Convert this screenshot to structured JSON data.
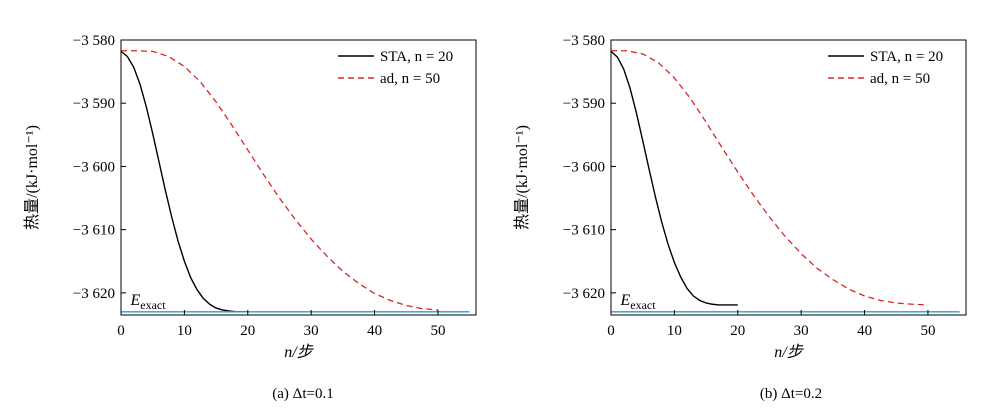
{
  "chart_data": [
    {
      "type": "line",
      "caption": "(a) Δt=0.1",
      "xlabel": "n/步",
      "ylabel": "热量/(kJ·mol⁻¹)",
      "xlim": [
        0,
        56
      ],
      "ylim": [
        -3623.5,
        -3580
      ],
      "xticks": [
        0,
        10,
        20,
        30,
        40,
        50
      ],
      "yticks": [
        -3580,
        -3590,
        -3600,
        -3610,
        -3620
      ],
      "ytick_labels": [
        "−3 580",
        "−3 590",
        "−3 600",
        "−3 610",
        "−3 620"
      ],
      "legend_position": "top-right",
      "series": [
        {
          "name": "STA, n = 20",
          "color": "#000000",
          "style": "solid",
          "x": [
            0,
            1,
            2,
            3,
            4,
            5,
            6,
            7,
            8,
            9,
            10,
            11,
            12,
            13,
            14,
            15,
            16,
            17,
            18,
            19,
            20
          ],
          "y": [
            -3581.8,
            -3582.6,
            -3584.3,
            -3587.0,
            -3590.6,
            -3594.8,
            -3599.3,
            -3603.8,
            -3608.0,
            -3611.8,
            -3615.0,
            -3617.6,
            -3619.5,
            -3620.9,
            -3621.8,
            -3622.4,
            -3622.7,
            -3622.85,
            -3622.95,
            -3623.0,
            -3623.0
          ]
        },
        {
          "name": "ad, n = 50",
          "color": "#d62728",
          "style": "dashed",
          "x": [
            0,
            2.5,
            5,
            7.5,
            10,
            12.5,
            15,
            17.5,
            20,
            22.5,
            25,
            27.5,
            30,
            32.5,
            35,
            37.5,
            40,
            42.5,
            45,
            47.5,
            50
          ],
          "y": [
            -3581.7,
            -3581.7,
            -3581.8,
            -3582.6,
            -3584.2,
            -3586.6,
            -3589.8,
            -3593.5,
            -3597.4,
            -3601.3,
            -3605.0,
            -3608.4,
            -3611.5,
            -3614.2,
            -3616.6,
            -3618.5,
            -3620.1,
            -3621.2,
            -3622.0,
            -3622.5,
            -3622.7
          ]
        },
        {
          "name": "E_exact",
          "color": "#1f9fe0",
          "style": "solid",
          "x": [
            0,
            55
          ],
          "y": [
            -3623.0,
            -3623.0
          ]
        }
      ],
      "annotations": [
        {
          "text": "E",
          "subscript": "exact",
          "x": 1.5,
          "y": -3621.9
        }
      ]
    },
    {
      "type": "line",
      "caption": "(b) Δt=0.2",
      "xlabel": "n/步",
      "ylabel": "热量/(kJ·mol⁻¹)",
      "xlim": [
        0,
        56
      ],
      "ylim": [
        -3623.5,
        -3580
      ],
      "xticks": [
        0,
        10,
        20,
        30,
        40,
        50
      ],
      "yticks": [
        -3580,
        -3590,
        -3600,
        -3610,
        -3620
      ],
      "ytick_labels": [
        "−3 580",
        "−3 590",
        "−3 600",
        "−3 610",
        "−3 620"
      ],
      "legend_position": "top-right",
      "series": [
        {
          "name": "STA, n = 20",
          "color": "#000000",
          "style": "solid",
          "x": [
            0,
            1,
            2,
            3,
            4,
            5,
            6,
            7,
            8,
            9,
            10,
            11,
            12,
            13,
            14,
            15,
            16,
            17,
            18,
            19,
            20
          ],
          "y": [
            -3581.8,
            -3582.7,
            -3584.6,
            -3587.6,
            -3591.5,
            -3595.9,
            -3600.4,
            -3604.8,
            -3608.8,
            -3612.3,
            -3615.2,
            -3617.5,
            -3619.3,
            -3620.5,
            -3621.2,
            -3621.6,
            -3621.8,
            -3621.9,
            -3621.9,
            -3621.9,
            -3621.9
          ]
        },
        {
          "name": "ad, n = 50",
          "color": "#d62728",
          "style": "dashed",
          "x": [
            0,
            2.5,
            5,
            7.5,
            10,
            12.5,
            15,
            17.5,
            20,
            22.5,
            25,
            27.5,
            30,
            32.5,
            35,
            37.5,
            40,
            42.5,
            45,
            47.5,
            50
          ],
          "y": [
            -3581.7,
            -3581.7,
            -3582.2,
            -3583.6,
            -3586.0,
            -3589.2,
            -3593.0,
            -3597.0,
            -3600.9,
            -3604.6,
            -3608.0,
            -3611.1,
            -3613.8,
            -3616.1,
            -3617.9,
            -3619.4,
            -3620.5,
            -3621.2,
            -3621.6,
            -3621.8,
            -3621.9
          ]
        },
        {
          "name": "E_exact",
          "color": "#1f9fe0",
          "style": "solid",
          "x": [
            0,
            55
          ],
          "y": [
            -3623.0,
            -3623.0
          ]
        }
      ],
      "annotations": [
        {
          "text": "E",
          "subscript": "exact",
          "x": 1.5,
          "y": -3621.9
        }
      ]
    }
  ]
}
